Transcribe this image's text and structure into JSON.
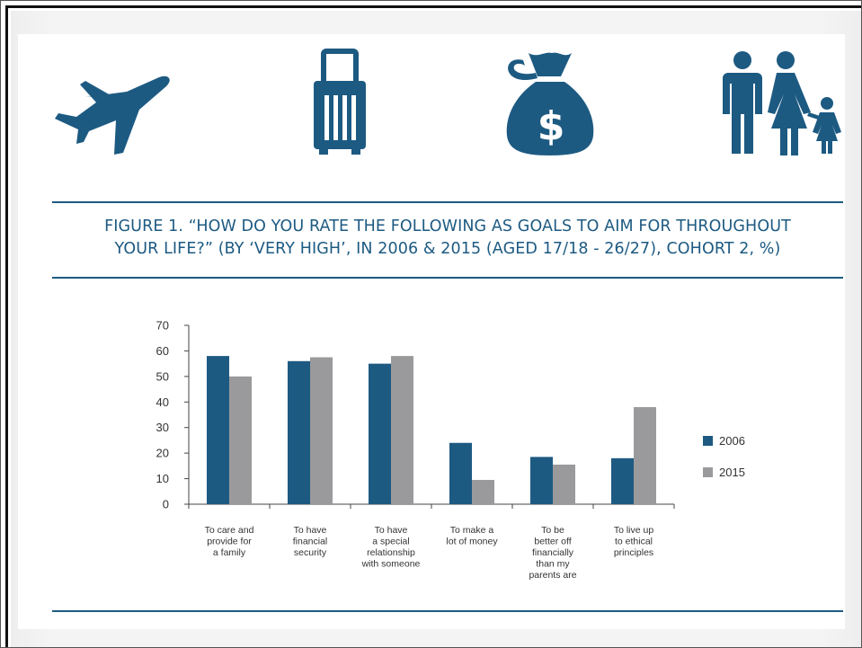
{
  "colors": {
    "accent": "#1d5a82",
    "s2006": "#1d5a82",
    "s2015": "#9a9a9c"
  },
  "icons": [
    "airplane-icon",
    "suitcase-icon",
    "money-bag-icon",
    "family-icon"
  ],
  "figure": {
    "title_line1": "FIGURE 1. “HOW DO YOU RATE THE FOLLOWING AS GOALS TO AIM FOR THROUGHOUT",
    "title_line2": "YOUR LIFE?” (BY ‘VERY HIGH’, IN 2006 & 2015 (AGED 17/18 - 26/27), COHORT 2, %)"
  },
  "chart_data": {
    "type": "bar",
    "categories": [
      [
        "To care and",
        "provide for",
        "a family"
      ],
      [
        "To have",
        "financial",
        "security"
      ],
      [
        "To have",
        "a special",
        "relationship",
        "with someone"
      ],
      [
        "To make a",
        "lot of money"
      ],
      [
        "To be",
        "better off",
        "financially",
        "than my",
        "parents are"
      ],
      [
        "To live up",
        "to ethical",
        "principles"
      ]
    ],
    "series": [
      {
        "name": "2006",
        "values": [
          58,
          56,
          55,
          24,
          18.5,
          18
        ]
      },
      {
        "name": "2015",
        "values": [
          50,
          57.5,
          58,
          9.5,
          15.5,
          38
        ]
      }
    ],
    "ylim": [
      0,
      70
    ],
    "yticks": [
      0,
      10,
      20,
      30,
      40,
      50,
      60,
      70
    ],
    "legend": "right",
    "grid": false
  }
}
